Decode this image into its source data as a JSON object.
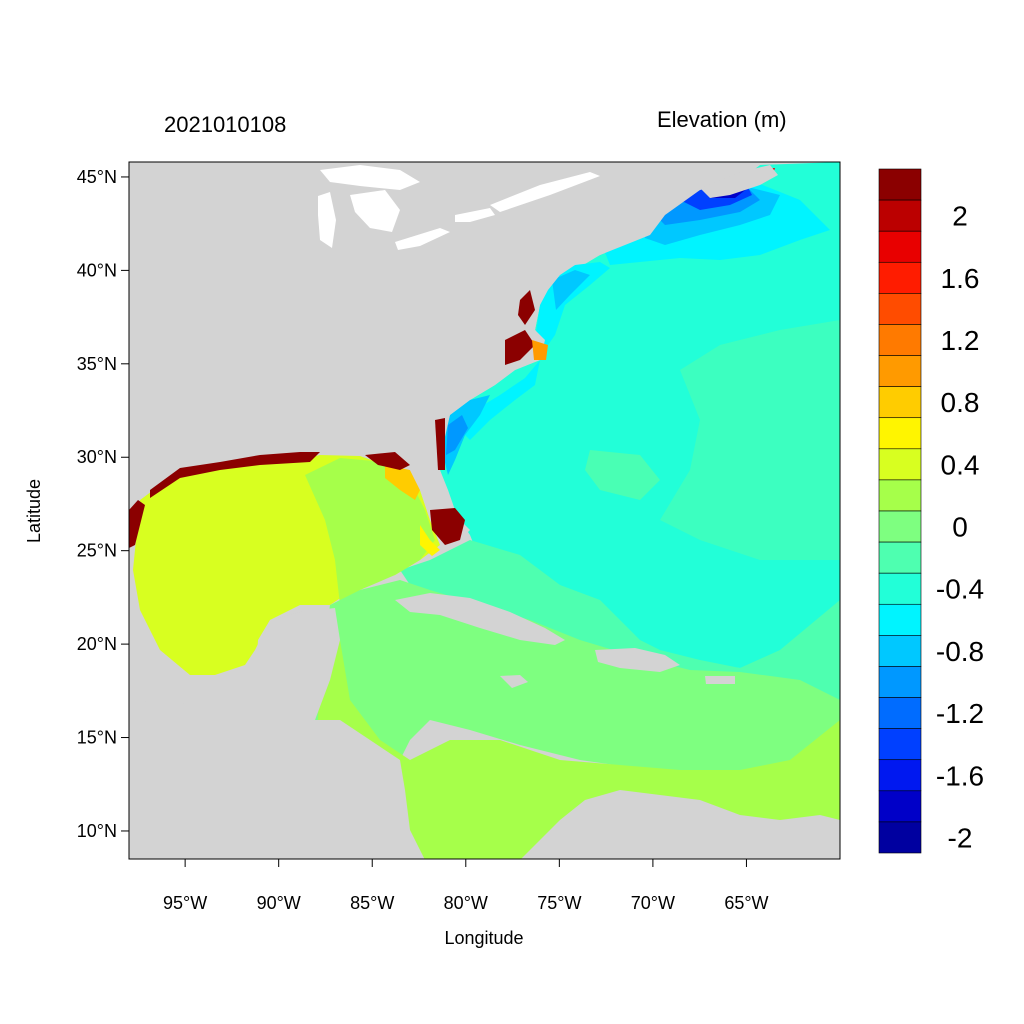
{
  "title": {
    "left": "2021010108",
    "right": "Elevation (m)"
  },
  "axes": {
    "xlabel": "Longitude",
    "ylabel": "Latitude",
    "xticks": [
      {
        "value": -95,
        "label": "95°W"
      },
      {
        "value": -90,
        "label": "90°W"
      },
      {
        "value": -85,
        "label": "85°W"
      },
      {
        "value": -80,
        "label": "80°W"
      },
      {
        "value": -75,
        "label": "75°W"
      },
      {
        "value": -70,
        "label": "70°W"
      },
      {
        "value": -65,
        "label": "65°W"
      }
    ],
    "yticks": [
      {
        "value": 45,
        "label": "45°N"
      },
      {
        "value": 40,
        "label": "40°N"
      },
      {
        "value": 35,
        "label": "35°N"
      },
      {
        "value": 30,
        "label": "30°N"
      },
      {
        "value": 25,
        "label": "25°N"
      },
      {
        "value": 20,
        "label": "20°N"
      },
      {
        "value": 15,
        "label": "15°N"
      },
      {
        "value": 10,
        "label": "10°N"
      }
    ],
    "xlim": [
      -98,
      -60
    ],
    "ylim": [
      8.5,
      45.8
    ]
  },
  "colorbar": {
    "colors_top_to_bottom": [
      "#8b0000",
      "#bb0000",
      "#e80000",
      "#ff1c00",
      "#ff4c00",
      "#ff7a00",
      "#ff9a00",
      "#ffcc00",
      "#fff500",
      "#d8ff20",
      "#a6ff4a",
      "#7eff80",
      "#4effb0",
      "#22ffd8",
      "#00f4ff",
      "#00c8ff",
      "#0098ff",
      "#006cff",
      "#0040ff",
      "#0018f0",
      "#0000c8",
      "#0000a0"
    ],
    "labels": [
      {
        "text": "2",
        "index": 1
      },
      {
        "text": "1.6",
        "index": 3
      },
      {
        "text": "1.2",
        "index": 5
      },
      {
        "text": "0.8",
        "index": 7
      },
      {
        "text": "0.4",
        "index": 9
      },
      {
        "text": "0",
        "index": 11
      },
      {
        "text": "-0.4",
        "index": 13
      },
      {
        "text": "-0.8",
        "index": 15
      },
      {
        "text": "-1.2",
        "index": 17
      },
      {
        "text": "-1.6",
        "index": 19
      },
      {
        "text": "-2",
        "index": 21
      }
    ]
  },
  "colors": {
    "land": "#d3d3d3",
    "ocean_main": "#22ffd8",
    "gulf": "#d8ff20",
    "caribbean": "#7eff80",
    "caribbean_south": "#a6ff4a",
    "surge": "#8b0000"
  }
}
